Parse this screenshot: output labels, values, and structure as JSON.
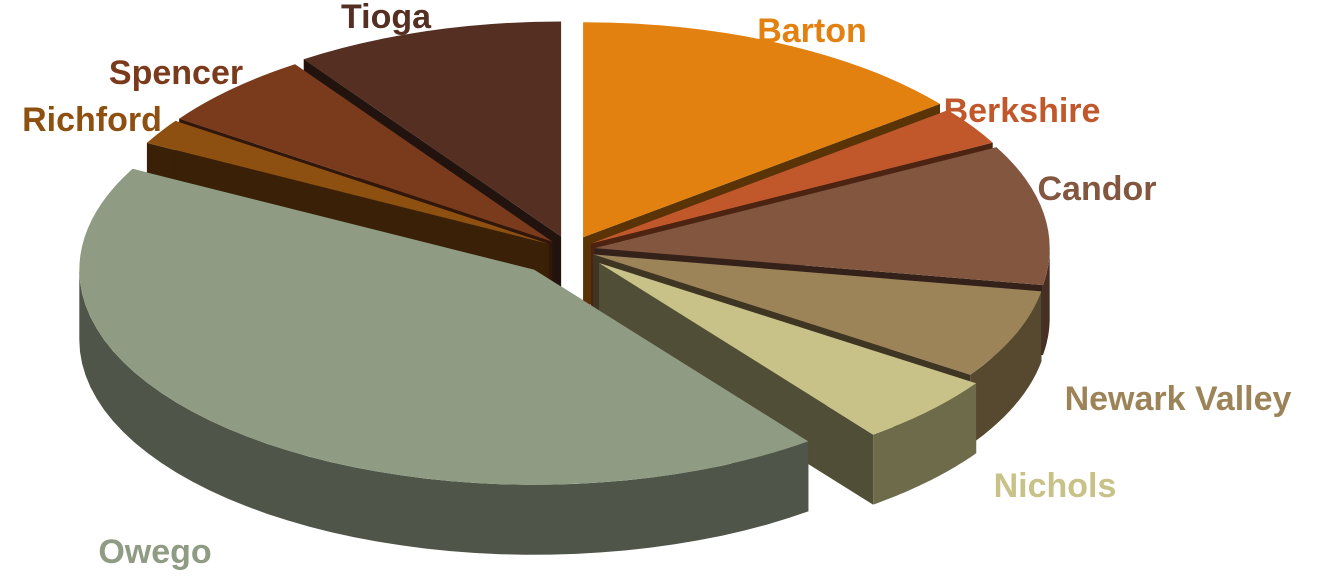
{
  "chart_data": {
    "type": "pie",
    "title": "",
    "legend": "none",
    "slices": [
      {
        "label": "Barton",
        "percent": 15,
        "color": "#e2810f"
      },
      {
        "label": "Berkshire",
        "percent": 3,
        "color": "#c0582b"
      },
      {
        "label": "Candor",
        "percent": 11,
        "color": "#835640"
      },
      {
        "label": "Newark Valley",
        "percent": 7,
        "color": "#9d8458"
      },
      {
        "label": "Nichols",
        "percent": 5.5,
        "color": "#c8c288"
      },
      {
        "label": "Owego",
        "percent": 45,
        "color": "#8f9b82"
      },
      {
        "label": "Richford",
        "percent": 2,
        "color": "#8e5010"
      },
      {
        "label": "Spencer",
        "percent": 6,
        "color": "#7a3a1c"
      },
      {
        "label": "Tioga",
        "percent": 10,
        "color": "#542f22"
      }
    ]
  }
}
